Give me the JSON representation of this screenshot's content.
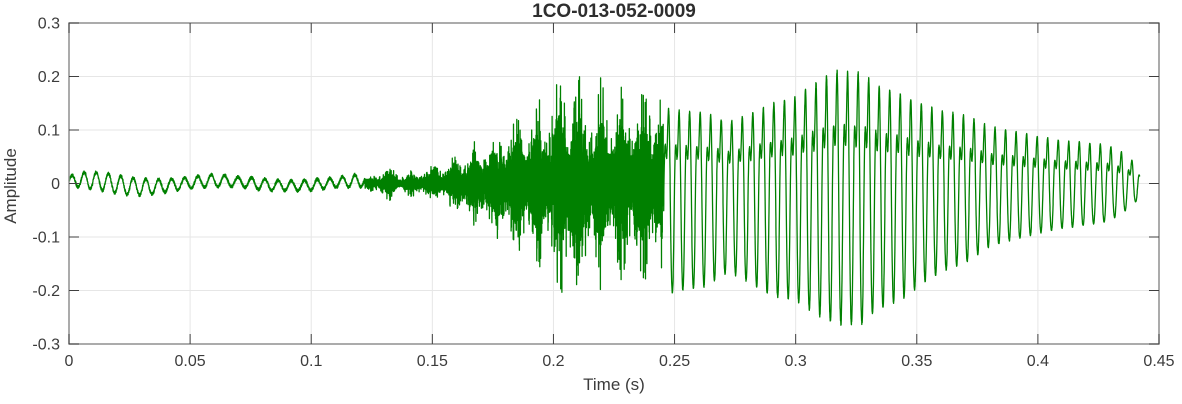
{
  "chart_data": {
    "type": "line",
    "title": "1CO-013-052-0009",
    "xlabel": "Time (s)",
    "ylabel": "Amplitude",
    "xlim": [
      0,
      0.45
    ],
    "ylim": [
      -0.3,
      0.3
    ],
    "xticks": [
      0,
      0.05,
      0.1,
      0.15,
      0.2,
      0.25,
      0.3,
      0.35,
      0.4,
      0.45
    ],
    "yticks": [
      -0.3,
      -0.2,
      -0.1,
      0,
      0.1,
      0.2,
      0.3
    ],
    "grid": true,
    "legend": "none",
    "line_color": "#008000",
    "frame_color": "#8f8f8f",
    "tick_mark_color": "#3f3f3f",
    "grid_color": "#e6e6e6",
    "text_color": "#3c3c3c",
    "title_color": "#2e2e2e",
    "signal": {
      "description": "speech-like waveform: quiet ripple 0-0.12s, noisy fricative burst 0.12-0.245s peaking +0.21/-0.26 near t=0.205s, periodic voiced vowel ~230Hz 0.245-0.442s peaking +0.245/-0.27 near t=0.32s, decaying to ~0.03 at t=0.442s",
      "t_end": 0.442,
      "seed": 42,
      "segments": [
        {
          "type": "ripple",
          "t0": 0.0,
          "t1": 0.122,
          "dt": 5e-05,
          "freq": 190,
          "jitter": 0.006,
          "env": [
            [
              0,
              0.01
            ],
            [
              0.008,
              0.016
            ],
            [
              0.02,
              0.017
            ],
            [
              0.03,
              0.015
            ],
            [
              0.04,
              0.012
            ],
            [
              0.05,
              0.01
            ],
            [
              0.06,
              0.012
            ],
            [
              0.07,
              0.009
            ],
            [
              0.08,
              0.011
            ],
            [
              0.09,
              0.009
            ],
            [
              0.1,
              0.01
            ],
            [
              0.11,
              0.009
            ],
            [
              0.115,
              0.011
            ],
            [
              0.122,
              0.012
            ]
          ]
        },
        {
          "type": "noise",
          "t0": 0.122,
          "t1": 0.2455,
          "dt": 2.5e-05,
          "core": 0.6,
          "spike_prob": 0.09,
          "am_freq": 115,
          "env": [
            [
              0.122,
              0.012
            ],
            [
              0.127,
              0.02
            ],
            [
              0.13,
              0.032
            ],
            [
              0.133,
              0.036
            ],
            [
              0.136,
              0.02
            ],
            [
              0.142,
              0.025
            ],
            [
              0.149,
              0.032
            ],
            [
              0.157,
              0.045
            ],
            [
              0.165,
              0.07
            ],
            [
              0.173,
              0.09
            ],
            [
              0.181,
              0.12
            ],
            [
              0.189,
              0.15
            ],
            [
              0.196,
              0.16
            ],
            [
              0.202,
              0.21
            ],
            [
              0.207,
              0.25
            ],
            [
              0.212,
              0.18
            ],
            [
              0.218,
              0.19
            ],
            [
              0.224,
              0.2
            ],
            [
              0.23,
              0.17
            ],
            [
              0.236,
              0.18
            ],
            [
              0.241,
              0.19
            ],
            [
              0.2455,
              0.19
            ]
          ]
        },
        {
          "type": "voiced",
          "t0": 0.2455,
          "t1": 0.442,
          "dt": 4e-05,
          "freq": 230,
          "phase": -0.6,
          "roughness": 0.03,
          "env": [
            [
              0.2455,
              0.165
            ],
            [
              0.255,
              0.158
            ],
            [
              0.263,
              0.155
            ],
            [
              0.272,
              0.135
            ],
            [
              0.28,
              0.15
            ],
            [
              0.29,
              0.175
            ],
            [
              0.3,
              0.19
            ],
            [
              0.308,
              0.22
            ],
            [
              0.316,
              0.247
            ],
            [
              0.327,
              0.244
            ],
            [
              0.334,
              0.215
            ],
            [
              0.342,
              0.2
            ],
            [
              0.352,
              0.175
            ],
            [
              0.36,
              0.16
            ],
            [
              0.37,
              0.15
            ],
            [
              0.38,
              0.126
            ],
            [
              0.39,
              0.115
            ],
            [
              0.4,
              0.105
            ],
            [
              0.41,
              0.095
            ],
            [
              0.42,
              0.09
            ],
            [
              0.428,
              0.085
            ],
            [
              0.434,
              0.072
            ],
            [
              0.439,
              0.05
            ],
            [
              0.442,
              0.035
            ]
          ],
          "neg_scale": [
            [
              0.2455,
              1.28
            ],
            [
              0.29,
              1.22
            ],
            [
              0.315,
              1.08
            ],
            [
              0.33,
              1.1
            ],
            [
              0.345,
              1.12
            ],
            [
              0.36,
              1.05
            ],
            [
              0.38,
              0.95
            ],
            [
              0.4,
              0.9
            ],
            [
              0.42,
              0.88
            ],
            [
              0.442,
              0.8
            ]
          ]
        }
      ]
    }
  }
}
